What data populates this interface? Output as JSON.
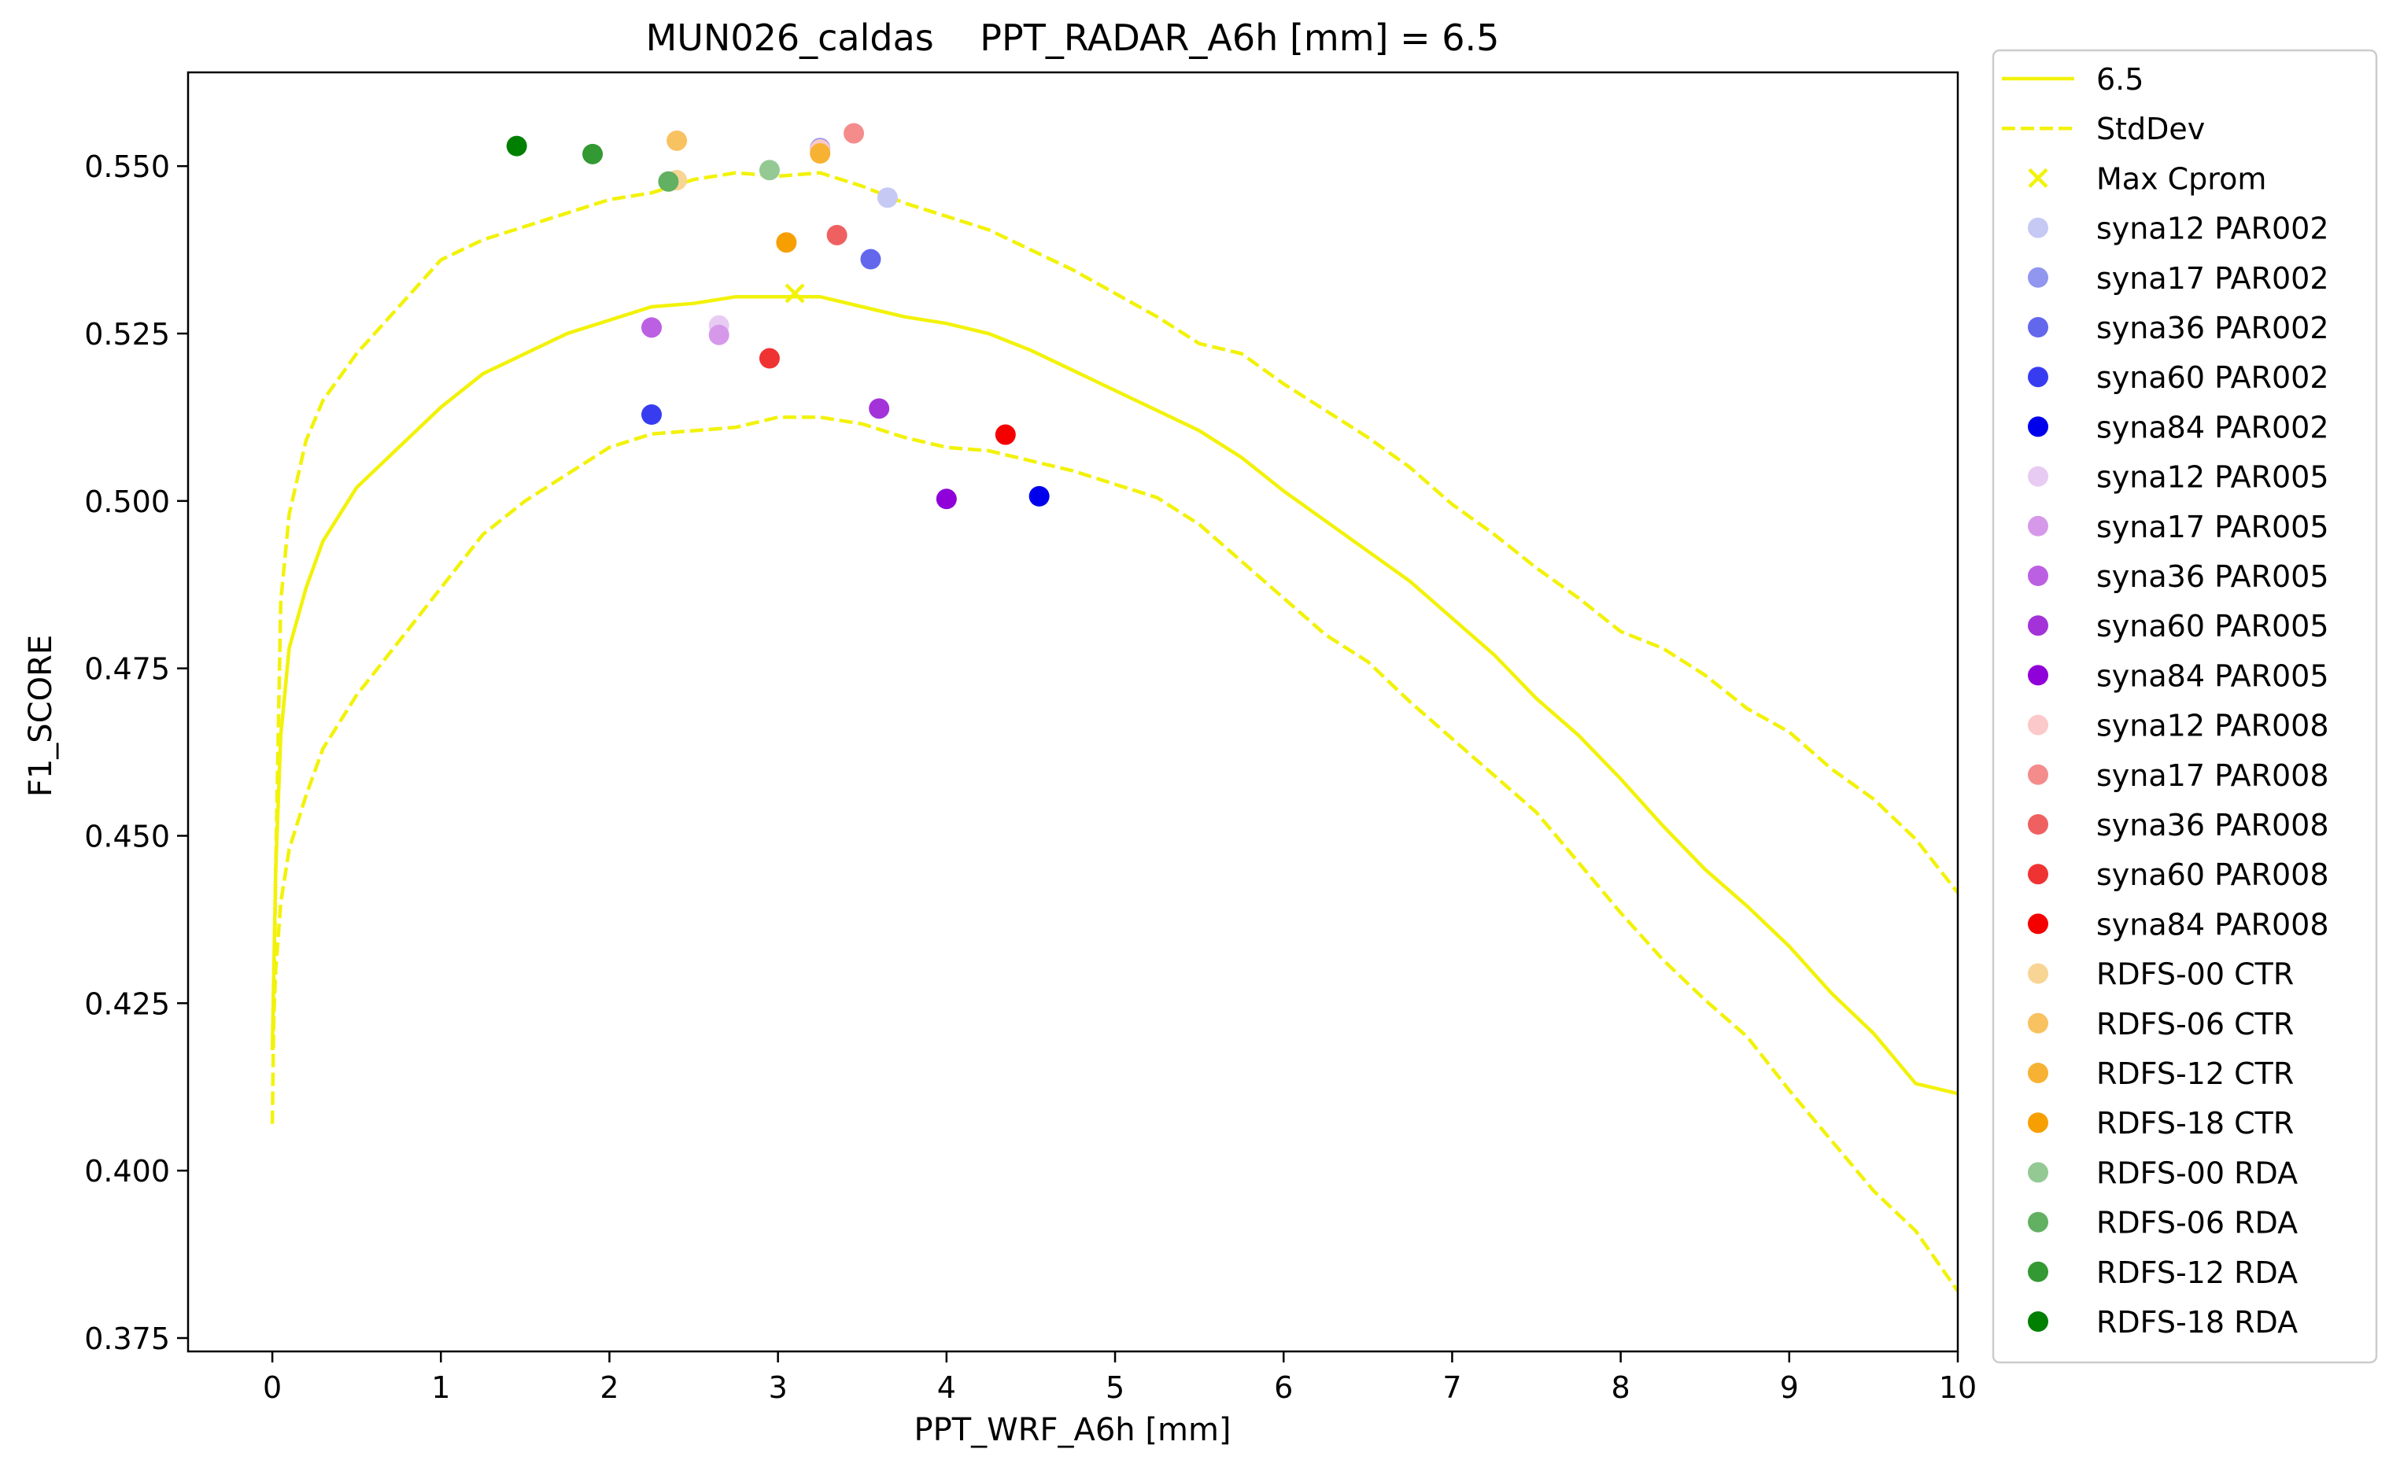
{
  "chart_data": {
    "type": "scatter",
    "title": "MUN026_caldas    PPT_RADAR_A6h [mm] = 6.5",
    "xlabel": "PPT_WRF_A6h [mm]",
    "ylabel": "F1_SCORE",
    "xlim": [
      -0.5,
      10
    ],
    "ylim": [
      0.373,
      0.564
    ],
    "xticks": [
      0,
      1,
      2,
      3,
      4,
      5,
      6,
      7,
      8,
      9,
      10
    ],
    "xtick_labels": [
      "0",
      "1",
      "2",
      "3",
      "4",
      "5",
      "6",
      "7",
      "8",
      "9",
      "10"
    ],
    "yticks": [
      0.375,
      0.4,
      0.425,
      0.45,
      0.475,
      0.5,
      0.525,
      0.55
    ],
    "ytick_labels": [
      "0.375",
      "0.400",
      "0.425",
      "0.450",
      "0.475",
      "0.500",
      "0.525",
      "0.550"
    ],
    "grid": false,
    "legend_position": "outside-right",
    "line_color": "#f2f20a",
    "lines": [
      {
        "name": "6.5",
        "style": "solid",
        "x": [
          0,
          0.02,
          0.05,
          0.1,
          0.2,
          0.3,
          0.5,
          0.75,
          1,
          1.25,
          1.5,
          1.75,
          2,
          2.25,
          2.5,
          2.75,
          3,
          3.25,
          3.5,
          3.75,
          4,
          4.25,
          4.5,
          4.75,
          5,
          5.25,
          5.5,
          5.75,
          6,
          6.25,
          6.5,
          6.75,
          7,
          7.25,
          7.5,
          7.75,
          8,
          8.25,
          8.5,
          8.75,
          9,
          9.25,
          9.5,
          9.75,
          10
        ],
        "y": [
          0.418,
          0.445,
          0.465,
          0.478,
          0.487,
          0.494,
          0.502,
          0.508,
          0.514,
          0.519,
          0.522,
          0.525,
          0.527,
          0.529,
          0.5295,
          0.5305,
          0.5305,
          0.5305,
          0.529,
          0.5275,
          0.5265,
          0.525,
          0.5225,
          0.5195,
          0.5165,
          0.5135,
          0.5105,
          0.5065,
          0.5015,
          0.497,
          0.4925,
          0.488,
          0.4825,
          0.477,
          0.4705,
          0.465,
          0.4585,
          0.4515,
          0.445,
          0.4395,
          0.4335,
          0.4265,
          0.4205,
          0.413,
          0.4115
        ]
      },
      {
        "name": "StdDev",
        "style": "dashed",
        "x": [
          0,
          0.02,
          0.05,
          0.1,
          0.2,
          0.3,
          0.5,
          0.75,
          1,
          1.25,
          1.5,
          1.75,
          2,
          2.25,
          2.5,
          2.75,
          3,
          3.25,
          3.5,
          3.75,
          4,
          4.25,
          4.5,
          4.75,
          5,
          5.25,
          5.5,
          5.75,
          6,
          6.25,
          6.5,
          6.75,
          7,
          7.25,
          7.5,
          7.75,
          8,
          8.25,
          8.5,
          8.75,
          9,
          9.25,
          9.5,
          9.75,
          10
        ],
        "y": [
          0.407,
          0.445,
          0.485,
          0.498,
          0.509,
          0.515,
          0.522,
          0.529,
          0.536,
          0.539,
          0.541,
          0.543,
          0.545,
          0.546,
          0.548,
          0.549,
          0.5485,
          0.549,
          0.547,
          0.5445,
          0.5425,
          0.5405,
          0.5375,
          0.5345,
          0.531,
          0.5275,
          0.5235,
          0.522,
          0.5175,
          0.5135,
          0.5095,
          0.505,
          0.4995,
          0.495,
          0.49,
          0.4855,
          0.4805,
          0.478,
          0.474,
          0.469,
          0.4655,
          0.46,
          0.4555,
          0.4495,
          0.4415
        ]
      },
      {
        "name": "",
        "style": "dashed",
        "x": [
          0,
          0.02,
          0.05,
          0.1,
          0.2,
          0.3,
          0.5,
          0.75,
          1,
          1.25,
          1.5,
          1.75,
          2,
          2.25,
          2.5,
          2.75,
          3,
          3.25,
          3.5,
          3.75,
          4,
          4.25,
          4.5,
          4.75,
          5,
          5.25,
          5.5,
          5.75,
          6,
          6.25,
          6.5,
          6.75,
          7,
          7.25,
          7.5,
          7.75,
          8,
          8.25,
          8.5,
          8.75,
          9,
          9.25,
          9.5,
          9.75,
          10
        ],
        "y": [
          0.418,
          0.43,
          0.44,
          0.448,
          0.456,
          0.463,
          0.471,
          0.479,
          0.487,
          0.495,
          0.5,
          0.504,
          0.508,
          0.51,
          0.5105,
          0.511,
          0.5125,
          0.5125,
          0.5115,
          0.5095,
          0.508,
          0.5075,
          0.506,
          0.5045,
          0.5025,
          0.5005,
          0.4965,
          0.491,
          0.4855,
          0.48,
          0.476,
          0.47,
          0.4645,
          0.459,
          0.4535,
          0.446,
          0.4385,
          0.4315,
          0.4255,
          0.42,
          0.412,
          0.4045,
          0.397,
          0.391,
          0.382
        ]
      }
    ],
    "max_cprom": {
      "name": "Max Cprom",
      "x": 3.1,
      "y": 0.531,
      "color": "#f2f20a"
    },
    "series": [
      {
        "name": "syna12 PAR002",
        "color": "#c6c9f3",
        "x": [
          3.65
        ],
        "y": [
          0.5453
        ]
      },
      {
        "name": "syna17 PAR002",
        "color": "#9196ee",
        "x": [
          3.25
        ],
        "y": [
          0.5527
        ]
      },
      {
        "name": "syna36 PAR002",
        "color": "#6367ec",
        "x": [
          3.55
        ],
        "y": [
          0.5361
        ]
      },
      {
        "name": "syna60 PAR002",
        "color": "#383cf0",
        "x": [
          2.25
        ],
        "y": [
          0.5129
        ]
      },
      {
        "name": "syna84 PAR002",
        "color": "#0000ec",
        "x": [
          4.55
        ],
        "y": [
          0.5007
        ]
      },
      {
        "name": "syna12 PAR005",
        "color": "#e8cbf3",
        "x": [
          2.65
        ],
        "y": [
          0.5262
        ]
      },
      {
        "name": "syna17 PAR005",
        "color": "#d699ea",
        "x": [
          2.65
        ],
        "y": [
          0.5248
        ]
      },
      {
        "name": "syna36 PAR005",
        "color": "#bc60e3",
        "x": [
          2.25
        ],
        "y": [
          0.5259
        ]
      },
      {
        "name": "syna60 PAR005",
        "color": "#a333d8",
        "x": [
          3.6
        ],
        "y": [
          0.5138
        ]
      },
      {
        "name": "syna84 PAR005",
        "color": "#9000d8",
        "x": [
          4.0
        ],
        "y": [
          0.5003
        ]
      },
      {
        "name": "syna12 PAR008",
        "color": "#fbc9c9",
        "x": [
          3.25
        ],
        "y": [
          0.5525
        ]
      },
      {
        "name": "syna17 PAR008",
        "color": "#f58c8c",
        "x": [
          3.45
        ],
        "y": [
          0.5549
        ]
      },
      {
        "name": "syna36 PAR008",
        "color": "#ef6161",
        "x": [
          3.35
        ],
        "y": [
          0.5397
        ]
      },
      {
        "name": "syna60 PAR008",
        "color": "#ef3333",
        "x": [
          2.95
        ],
        "y": [
          0.5213
        ]
      },
      {
        "name": "syna84 PAR008",
        "color": "#f50000",
        "x": [
          4.35
        ],
        "y": [
          0.5099
        ]
      },
      {
        "name": "RDFS-00 CTR",
        "color": "#f8d594",
        "x": [
          2.4
        ],
        "y": [
          0.5479
        ]
      },
      {
        "name": "RDFS-06 CTR",
        "color": "#f8c261",
        "x": [
          2.4
        ],
        "y": [
          0.5538
        ]
      },
      {
        "name": "RDFS-12 CTR",
        "color": "#f7b233",
        "x": [
          3.25
        ],
        "y": [
          0.5519
        ]
      },
      {
        "name": "RDFS-18 CTR",
        "color": "#f79f00",
        "x": [
          3.05
        ],
        "y": [
          0.5386
        ]
      },
      {
        "name": "RDFS-00 RDA",
        "color": "#94c994",
        "x": [
          2.95
        ],
        "y": [
          0.5494
        ]
      },
      {
        "name": "RDFS-06 RDA",
        "color": "#62b062",
        "x": [
          2.35
        ],
        "y": [
          0.5477
        ]
      },
      {
        "name": "RDFS-12 RDA",
        "color": "#339933",
        "x": [
          1.9
        ],
        "y": [
          0.5518
        ]
      },
      {
        "name": "RDFS-18 RDA",
        "color": "#007f00",
        "x": [
          1.45
        ],
        "y": [
          0.553
        ]
      }
    ]
  }
}
